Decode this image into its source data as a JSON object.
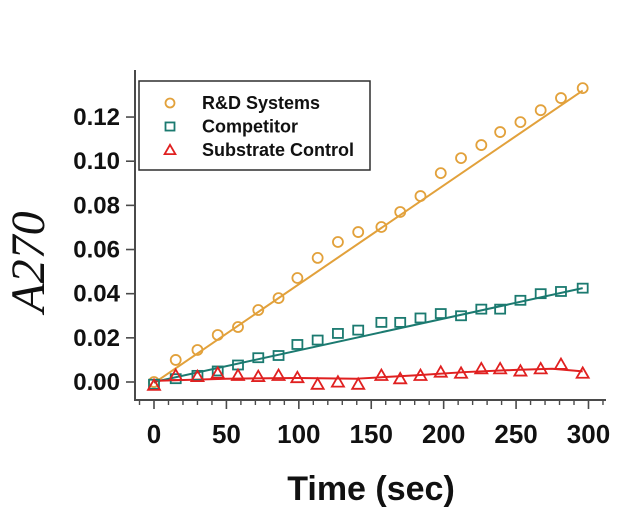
{
  "figure": {
    "background_color": "#ffffff"
  },
  "chart_data": {
    "type": "scatter",
    "title": "",
    "xlabel": "Time (sec)",
    "ylabel": "A270",
    "xlim": [
      0,
      300
    ],
    "ylim": [
      0,
      0.14
    ],
    "grid": false,
    "legend_position": "top-left",
    "axis_color": "#4a4a4a",
    "text_color": "#111111",
    "legend_border_color": "#2e2e2e",
    "x_major_ticks": [
      0,
      50,
      100,
      150,
      200,
      250,
      300
    ],
    "x_minor_tick_step": 10,
    "y_major_ticks": [
      0.0,
      0.02,
      0.04,
      0.06,
      0.08,
      0.1,
      0.12
    ],
    "x": [
      0,
      15,
      30,
      44,
      58,
      72,
      86,
      99,
      113,
      127,
      141,
      157,
      170,
      184,
      198,
      212,
      226,
      239,
      253,
      267,
      281,
      296
    ],
    "series": [
      {
        "name": "R&D Systems",
        "marker": "circle",
        "color": "#E2A13B",
        "values": [
          0.0,
          0.01,
          0.0145,
          0.0213,
          0.0249,
          0.0326,
          0.038,
          0.0471,
          0.0562,
          0.0634,
          0.0679,
          0.0702,
          0.077,
          0.0842,
          0.0946,
          0.1014,
          0.1073,
          0.1132,
          0.1177,
          0.1231,
          0.1286,
          0.1331
        ],
        "fit_line": [
          [
            0,
            -0.0005
          ],
          [
            296,
            0.132
          ]
        ]
      },
      {
        "name": "Competitor",
        "marker": "square",
        "color": "#1B7A70",
        "values": [
          -0.001,
          0.0015,
          0.003,
          0.005,
          0.0077,
          0.011,
          0.012,
          0.017,
          0.019,
          0.022,
          0.0235,
          0.027,
          0.027,
          0.029,
          0.031,
          0.03,
          0.033,
          0.033,
          0.037,
          0.04,
          0.041,
          0.0425
        ],
        "fit_line": [
          [
            0,
            0.0
          ],
          [
            296,
            0.0425
          ]
        ]
      },
      {
        "name": "Substrate Control",
        "marker": "triangle",
        "color": "#E02020",
        "values": [
          -0.0015,
          0.003,
          0.0025,
          0.004,
          0.003,
          0.0025,
          0.003,
          0.002,
          -0.001,
          0.0,
          -0.001,
          0.003,
          0.0015,
          0.003,
          0.0045,
          0.004,
          0.006,
          0.006,
          0.005,
          0.006,
          0.008,
          0.004
        ],
        "fit_line": [
          [
            0,
            0.0005
          ],
          [
            50,
            0.0015
          ],
          [
            100,
            0.0018
          ],
          [
            140,
            0.0015
          ],
          [
            180,
            0.003
          ],
          [
            215,
            0.0045
          ],
          [
            250,
            0.0055
          ],
          [
            275,
            0.006
          ],
          [
            296,
            0.0048
          ]
        ]
      }
    ]
  }
}
